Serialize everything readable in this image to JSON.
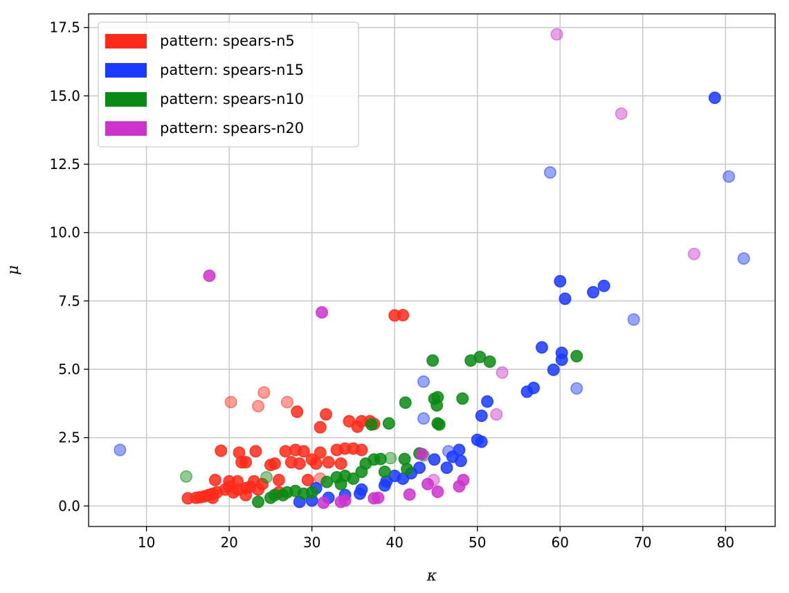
{
  "chart_data": {
    "type": "scatter",
    "title": "",
    "xlabel": "κ",
    "ylabel": "μ",
    "xlim": [
      3,
      86
    ],
    "ylim": [
      -0.75,
      18.0
    ],
    "xticks": [
      10,
      20,
      30,
      40,
      50,
      60,
      70,
      80
    ],
    "yticks": [
      0.0,
      2.5,
      5.0,
      7.5,
      10.0,
      12.5,
      15.0,
      17.5
    ],
    "xtick_labels": [
      "10",
      "20",
      "30",
      "40",
      "50",
      "60",
      "70",
      "80"
    ],
    "ytick_labels": [
      "0.0",
      "2.5",
      "5.0",
      "7.5",
      "10.0",
      "12.5",
      "15.0",
      "17.5"
    ],
    "grid": true,
    "legend_position": "top-left",
    "series": [
      {
        "name": "pattern: spears-n5",
        "color": "#ff2a1a",
        "points": [
          [
            15,
            0.28
          ],
          [
            16,
            0.3
          ],
          [
            16.5,
            0.32
          ],
          [
            17,
            0.35
          ],
          [
            17.5,
            0.4
          ],
          [
            18,
            0.45
          ],
          [
            18,
            0.3
          ],
          [
            18.5,
            0.5
          ],
          [
            18.3,
            0.95
          ],
          [
            19,
            2.02
          ],
          [
            19.5,
            0.6
          ],
          [
            20,
            0.7
          ],
          [
            20,
            0.9
          ],
          [
            20.5,
            0.5
          ],
          [
            21,
            0.6
          ],
          [
            21,
            0.9
          ],
          [
            21.2,
            1.95
          ],
          [
            21.5,
            1.6
          ],
          [
            22,
            0.65
          ],
          [
            22,
            1.6
          ],
          [
            22.5,
            0.7
          ],
          [
            23,
            0.9
          ],
          [
            23.2,
            2.0
          ],
          [
            23.5,
            0.6
          ],
          [
            24,
            0.8
          ],
          [
            24.2,
            4.15
          ],
          [
            20.2,
            3.8
          ],
          [
            23.5,
            3.65
          ],
          [
            25,
            1.5
          ],
          [
            25.5,
            1.55
          ],
          [
            26,
            0.95
          ],
          [
            26.8,
            2.0
          ],
          [
            27,
            3.8
          ],
          [
            27.5,
            1.6
          ],
          [
            28,
            2.05
          ],
          [
            28.2,
            3.45
          ],
          [
            28.5,
            1.55
          ],
          [
            29,
            2.0
          ],
          [
            29.5,
            0.95
          ],
          [
            30,
            1.7
          ],
          [
            30.5,
            1.55
          ],
          [
            31,
            2.88
          ],
          [
            31,
            1.95
          ],
          [
            31.7,
            3.35
          ],
          [
            32,
            1.6
          ],
          [
            33,
            2.05
          ],
          [
            33.5,
            1.55
          ],
          [
            34,
            2.1
          ],
          [
            34.5,
            3.1
          ],
          [
            35,
            2.1
          ],
          [
            35.5,
            2.9
          ],
          [
            36,
            3.1
          ],
          [
            36,
            2.05
          ],
          [
            37,
            3.1
          ],
          [
            37.5,
            3.0
          ],
          [
            40,
            6.97
          ],
          [
            41,
            6.98
          ],
          [
            31,
            1.0
          ],
          [
            22,
            0.4
          ],
          [
            26,
            0.5
          ]
        ],
        "faded": [
          [
            20.2,
            3.8
          ],
          [
            23.5,
            3.65
          ],
          [
            24.2,
            4.15
          ],
          [
            27,
            3.8
          ],
          [
            31,
            1.0
          ]
        ]
      },
      {
        "name": "pattern: spears-n15",
        "color": "#1a3aff",
        "points": [
          [
            6.8,
            2.05
          ],
          [
            28.5,
            0.15
          ],
          [
            30,
            0.2
          ],
          [
            30.5,
            0.65
          ],
          [
            32,
            0.3
          ],
          [
            34,
            0.4
          ],
          [
            35.8,
            0.45
          ],
          [
            36,
            0.6
          ],
          [
            38.8,
            0.75
          ],
          [
            39,
            0.9
          ],
          [
            40,
            1.1
          ],
          [
            41,
            1.0
          ],
          [
            42,
            1.2
          ],
          [
            43,
            1.4
          ],
          [
            43.5,
            4.55
          ],
          [
            43.5,
            3.2
          ],
          [
            44.8,
            1.7
          ],
          [
            46.3,
            1.4
          ],
          [
            46.5,
            2.0
          ],
          [
            47,
            1.8
          ],
          [
            47.8,
            2.05
          ],
          [
            48,
            1.65
          ],
          [
            50,
            2.42
          ],
          [
            50.5,
            2.35
          ],
          [
            50.5,
            3.3
          ],
          [
            51.2,
            3.82
          ],
          [
            56,
            4.18
          ],
          [
            56.8,
            4.32
          ],
          [
            57.8,
            5.8
          ],
          [
            59.2,
            4.98
          ],
          [
            60,
            8.22
          ],
          [
            60.2,
            5.6
          ],
          [
            60.2,
            5.35
          ],
          [
            60.6,
            7.58
          ],
          [
            62,
            4.3
          ],
          [
            64,
            7.82
          ],
          [
            65.3,
            8.05
          ],
          [
            68.9,
            6.82
          ],
          [
            58.8,
            12.2
          ],
          [
            78.7,
            14.93
          ],
          [
            80.4,
            12.05
          ],
          [
            82.2,
            9.05
          ]
        ],
        "faded": [
          [
            6.8,
            2.05
          ],
          [
            43.5,
            4.55
          ],
          [
            43.5,
            3.2
          ],
          [
            46.5,
            2.0
          ],
          [
            58.8,
            12.2
          ],
          [
            62,
            4.3
          ],
          [
            68.9,
            6.82
          ],
          [
            80.4,
            12.05
          ],
          [
            82.2,
            9.05
          ]
        ]
      },
      {
        "name": "pattern: spears-n10",
        "color": "#0a8a14",
        "points": [
          [
            14.8,
            1.08
          ],
          [
            23.5,
            0.15
          ],
          [
            24.5,
            1.05
          ],
          [
            25,
            0.3
          ],
          [
            25.5,
            0.4
          ],
          [
            26.5,
            0.4
          ],
          [
            27,
            0.5
          ],
          [
            28,
            0.55
          ],
          [
            29,
            0.45
          ],
          [
            30,
            0.5
          ],
          [
            31.8,
            0.88
          ],
          [
            33,
            1.05
          ],
          [
            33.5,
            0.8
          ],
          [
            34,
            1.1
          ],
          [
            35,
            1.0
          ],
          [
            36,
            1.25
          ],
          [
            36.5,
            1.55
          ],
          [
            37.2,
            2.98
          ],
          [
            37.5,
            1.7
          ],
          [
            38.3,
            1.72
          ],
          [
            38.8,
            1.25
          ],
          [
            39.3,
            3.02
          ],
          [
            39.5,
            1.75
          ],
          [
            41.2,
            1.72
          ],
          [
            41.5,
            1.35
          ],
          [
            41.3,
            3.78
          ],
          [
            43,
            1.92
          ],
          [
            43.5,
            1.85
          ],
          [
            44.6,
            5.32
          ],
          [
            44.8,
            3.92
          ],
          [
            45.1,
            3.68
          ],
          [
            45.2,
            3.98
          ],
          [
            45.2,
            3.02
          ],
          [
            45.4,
            2.98
          ],
          [
            48.2,
            3.93
          ],
          [
            49.2,
            5.32
          ],
          [
            50.3,
            5.45
          ],
          [
            51.5,
            5.28
          ],
          [
            62,
            5.48
          ]
        ],
        "faded": [
          [
            14.8,
            1.08
          ],
          [
            24.5,
            1.05
          ],
          [
            39.5,
            1.75
          ],
          [
            43.5,
            1.85
          ]
        ]
      },
      {
        "name": "pattern: spears-n20",
        "color": "#cc33cc",
        "points": [
          [
            17.6,
            8.42
          ],
          [
            31.2,
            7.08
          ],
          [
            31.4,
            0.12
          ],
          [
            33.5,
            0.15
          ],
          [
            34,
            0.2
          ],
          [
            37.5,
            0.28
          ],
          [
            38,
            0.3
          ],
          [
            41.8,
            0.42
          ],
          [
            43.3,
            1.9
          ],
          [
            44,
            0.8
          ],
          [
            44.7,
            0.95
          ],
          [
            45.2,
            0.52
          ],
          [
            47.8,
            0.72
          ],
          [
            48.3,
            0.95
          ],
          [
            52.3,
            3.35
          ],
          [
            53,
            4.88
          ],
          [
            59.6,
            17.25
          ],
          [
            67.4,
            14.35
          ],
          [
            76.2,
            9.22
          ]
        ],
        "faded": [
          [
            44.7,
            0.95
          ],
          [
            52.3,
            3.35
          ],
          [
            53,
            4.88
          ],
          [
            59.6,
            17.25
          ],
          [
            67.4,
            14.35
          ],
          [
            76.2,
            9.22
          ]
        ]
      }
    ]
  }
}
